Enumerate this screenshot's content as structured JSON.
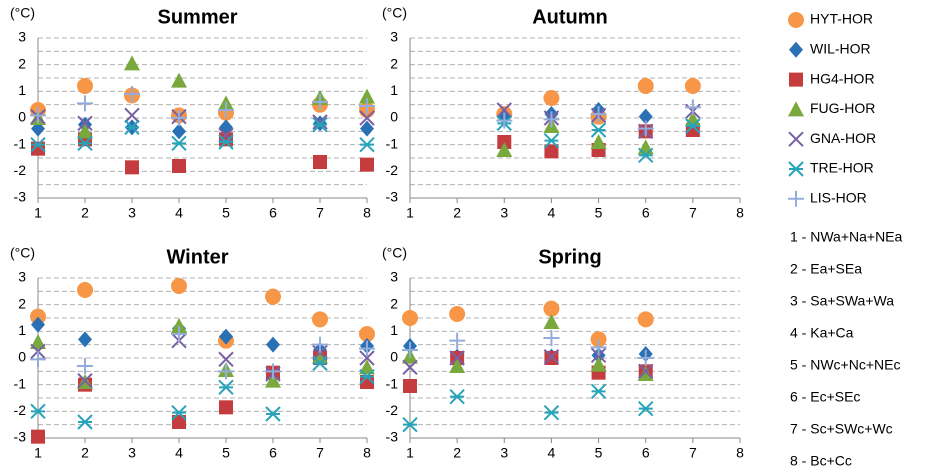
{
  "legend": {
    "series": [
      {
        "name": "HYT-HOR",
        "color": "#f79646",
        "marker": "circle"
      },
      {
        "name": "WIL-HOR",
        "color": "#2a70b5",
        "marker": "diamond"
      },
      {
        "name": "HG4-HOR",
        "color": "#c43c3e",
        "marker": "square"
      },
      {
        "name": "FUG-HOR",
        "color": "#79a83c",
        "marker": "triangle"
      },
      {
        "name": "GNA-HOR",
        "color": "#7a5fa5",
        "marker": "x"
      },
      {
        "name": "TRE-HOR",
        "color": "#27a3ba",
        "marker": "asterisk"
      },
      {
        "name": "LIS-HOR",
        "color": "#94acd9",
        "marker": "plus"
      }
    ],
    "category_key": [
      "1 - NWa+Na+NEa",
      "2 - Ea+SEa",
      "3 - Sa+SWa+Wa",
      "4 - Ka+Ca",
      "5 - NWc+Nc+NEc",
      "6 - Ec+SEc",
      "7 - Sc+SWc+Wc",
      "8 - Bc+Cc"
    ]
  },
  "chart_data": [
    {
      "type": "scatter",
      "title": "Summer",
      "y_unit": "(°C)",
      "x": [
        1,
        2,
        3,
        4,
        5,
        6,
        7,
        8
      ],
      "xlim": [
        1,
        8
      ],
      "xticks": [
        1,
        2,
        3,
        4,
        5,
        6,
        7,
        8
      ],
      "ylim": [
        -3,
        3
      ],
      "yticks": [
        -3,
        -2,
        -1,
        0,
        1,
        2,
        3
      ],
      "ygrid": [
        -2.5,
        -2,
        -1.5,
        -1,
        -0.5,
        0,
        0.5,
        1,
        1.5,
        2,
        2.5,
        3
      ],
      "series": [
        {
          "values": [
            0.3,
            1.2,
            0.85,
            0.1,
            0.2,
            null,
            0.5,
            0.3
          ]
        },
        {
          "values": [
            -0.4,
            -0.25,
            -0.35,
            -0.5,
            -0.35,
            null,
            -0.2,
            -0.4
          ]
        },
        {
          "values": [
            -1.15,
            -0.8,
            -1.85,
            -1.8,
            -0.8,
            null,
            -1.65,
            -1.75
          ]
        },
        {
          "values": [
            0.0,
            -0.5,
            2.05,
            1.4,
            0.55,
            null,
            0.75,
            0.8
          ]
        },
        {
          "values": [
            0.05,
            -0.2,
            0.1,
            0.05,
            -0.65,
            null,
            -0.15,
            0.0
          ]
        },
        {
          "values": [
            -1.0,
            -0.95,
            -0.35,
            -0.95,
            -0.9,
            null,
            -0.25,
            -1.0
          ]
        },
        {
          "values": [
            0.1,
            0.55,
            0.9,
            0.0,
            0.3,
            null,
            0.6,
            0.45
          ]
        }
      ]
    },
    {
      "type": "scatter",
      "title": "Autumn",
      "y_unit": "(°C)",
      "x": [
        1,
        2,
        3,
        4,
        5,
        6,
        7,
        8
      ],
      "xlim": [
        1,
        8
      ],
      "xticks": [
        1,
        2,
        3,
        4,
        5,
        6,
        7,
        8
      ],
      "ylim": [
        -3,
        3
      ],
      "yticks": [
        -3,
        -2,
        -1,
        0,
        1,
        2,
        3
      ],
      "ygrid": [
        -2.5,
        -2,
        -1.5,
        -1,
        -0.5,
        0,
        0.5,
        1,
        1.5,
        2,
        2.5,
        3
      ],
      "series": [
        {
          "values": [
            null,
            null,
            0.15,
            0.75,
            0.05,
            1.2,
            1.2,
            null
          ]
        },
        {
          "values": [
            null,
            null,
            0.05,
            0.15,
            0.3,
            0.05,
            -0.35,
            null
          ]
        },
        {
          "values": [
            null,
            null,
            -0.9,
            -1.25,
            -1.2,
            -0.5,
            -0.45,
            null
          ]
        },
        {
          "values": [
            null,
            null,
            -1.2,
            -0.3,
            -0.9,
            -1.1,
            -0.05,
            null
          ]
        },
        {
          "values": [
            null,
            null,
            0.3,
            0.0,
            0.1,
            -0.5,
            0.25,
            null
          ]
        },
        {
          "values": [
            null,
            null,
            -0.2,
            -0.85,
            -0.45,
            -1.4,
            -0.3,
            null
          ]
        },
        {
          "values": [
            null,
            null,
            -0.1,
            -0.05,
            0.15,
            -0.4,
            0.4,
            null
          ]
        }
      ]
    },
    {
      "type": "scatter",
      "title": "Winter",
      "y_unit": "(°C)",
      "x": [
        1,
        2,
        3,
        4,
        5,
        6,
        7,
        8
      ],
      "xlim": [
        1,
        8
      ],
      "xticks": [
        1,
        2,
        3,
        4,
        5,
        6,
        7,
        8
      ],
      "ylim": [
        -3,
        3
      ],
      "yticks": [
        -3,
        -2,
        -1,
        0,
        1,
        2,
        3
      ],
      "ygrid": [
        -2.5,
        -2,
        -1.5,
        -1,
        -0.5,
        0,
        0.5,
        1,
        1.5,
        2,
        2.5,
        3
      ],
      "series": [
        {
          "values": [
            1.55,
            2.55,
            null,
            2.7,
            0.65,
            2.3,
            1.45,
            0.9
          ]
        },
        {
          "values": [
            1.25,
            0.7,
            null,
            1.1,
            0.8,
            0.5,
            0.3,
            0.45
          ]
        },
        {
          "values": [
            -2.95,
            -1.0,
            null,
            -2.4,
            -1.85,
            -0.55,
            0.0,
            -0.9
          ]
        },
        {
          "values": [
            0.6,
            -0.9,
            null,
            1.2,
            -0.45,
            -0.85,
            0.05,
            -0.35
          ]
        },
        {
          "values": [
            0.25,
            -0.85,
            null,
            0.65,
            -0.05,
            -0.6,
            0.2,
            0.0
          ]
        },
        {
          "values": [
            -2.0,
            -2.4,
            null,
            -2.05,
            -1.1,
            -2.1,
            -0.2,
            -0.7
          ]
        },
        {
          "values": [
            -0.05,
            -0.3,
            null,
            0.9,
            -0.5,
            -0.5,
            0.5,
            0.35
          ]
        }
      ]
    },
    {
      "type": "scatter",
      "title": "Spring",
      "y_unit": "(°C)",
      "x": [
        1,
        2,
        3,
        4,
        5,
        6,
        7,
        8
      ],
      "xlim": [
        1,
        8
      ],
      "xticks": [
        1,
        2,
        3,
        4,
        5,
        6,
        7,
        8
      ],
      "ylim": [
        -3,
        3
      ],
      "yticks": [
        -3,
        -2,
        -1,
        0,
        1,
        2,
        3
      ],
      "ygrid": [
        -2.5,
        -2,
        -1.5,
        -1,
        -0.5,
        0,
        0.5,
        1,
        1.5,
        2,
        2.5,
        3
      ],
      "series": [
        {
          "values": [
            1.5,
            1.65,
            null,
            1.85,
            0.7,
            1.45,
            null,
            null
          ]
        },
        {
          "values": [
            0.45,
            0.05,
            null,
            0.05,
            0.1,
            0.15,
            null,
            null
          ]
        },
        {
          "values": [
            -1.05,
            0.0,
            null,
            0.0,
            -0.55,
            -0.5,
            null,
            null
          ]
        },
        {
          "values": [
            0.05,
            -0.3,
            null,
            1.35,
            -0.25,
            -0.6,
            null,
            null
          ]
        },
        {
          "values": [
            -0.35,
            0.0,
            null,
            0.05,
            0.1,
            -0.5,
            null,
            null
          ]
        },
        {
          "values": [
            -2.5,
            -1.45,
            null,
            -2.05,
            -1.25,
            -1.9,
            null,
            null
          ]
        },
        {
          "values": [
            0.3,
            0.65,
            null,
            0.75,
            0.4,
            0.0,
            null,
            null
          ]
        }
      ]
    }
  ]
}
